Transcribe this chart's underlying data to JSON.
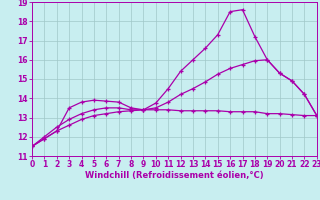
{
  "title": "",
  "xlabel": "Windchill (Refroidissement éolien,°C)",
  "ylabel": "",
  "bg_color": "#c8eef0",
  "line_color": "#aa00aa",
  "grid_color": "#a0c8c8",
  "x_values": [
    0,
    1,
    2,
    3,
    4,
    5,
    6,
    7,
    8,
    9,
    10,
    11,
    12,
    13,
    14,
    15,
    16,
    17,
    18,
    19,
    20,
    21,
    22,
    23
  ],
  "line1": [
    11.5,
    11.9,
    12.3,
    13.5,
    13.8,
    13.9,
    13.85,
    13.8,
    13.5,
    13.4,
    13.4,
    13.4,
    13.35,
    13.35,
    13.35,
    13.35,
    13.3,
    13.3,
    13.3,
    13.2,
    13.2,
    13.15,
    13.1,
    13.1
  ],
  "line2": [
    11.5,
    12.0,
    12.5,
    12.9,
    13.2,
    13.4,
    13.5,
    13.5,
    13.4,
    13.4,
    13.5,
    13.8,
    14.2,
    14.5,
    14.85,
    15.25,
    15.55,
    15.75,
    15.95,
    16.0,
    15.3,
    14.9,
    14.2,
    13.1
  ],
  "line3": [
    11.5,
    11.9,
    12.3,
    12.6,
    12.9,
    13.1,
    13.2,
    13.3,
    13.35,
    13.4,
    13.75,
    14.5,
    15.4,
    16.0,
    16.6,
    17.3,
    18.5,
    18.6,
    17.2,
    16.0,
    15.3,
    14.9,
    14.2,
    13.1
  ],
  "ylim": [
    11,
    19
  ],
  "xlim": [
    0,
    23
  ],
  "yticks": [
    11,
    12,
    13,
    14,
    15,
    16,
    17,
    18,
    19
  ],
  "xticks": [
    0,
    1,
    2,
    3,
    4,
    5,
    6,
    7,
    8,
    9,
    10,
    11,
    12,
    13,
    14,
    15,
    16,
    17,
    18,
    19,
    20,
    21,
    22,
    23
  ],
  "tick_fontsize": 5.5,
  "xlabel_fontsize": 6.0,
  "marker_size": 3.5,
  "linewidth": 0.9
}
